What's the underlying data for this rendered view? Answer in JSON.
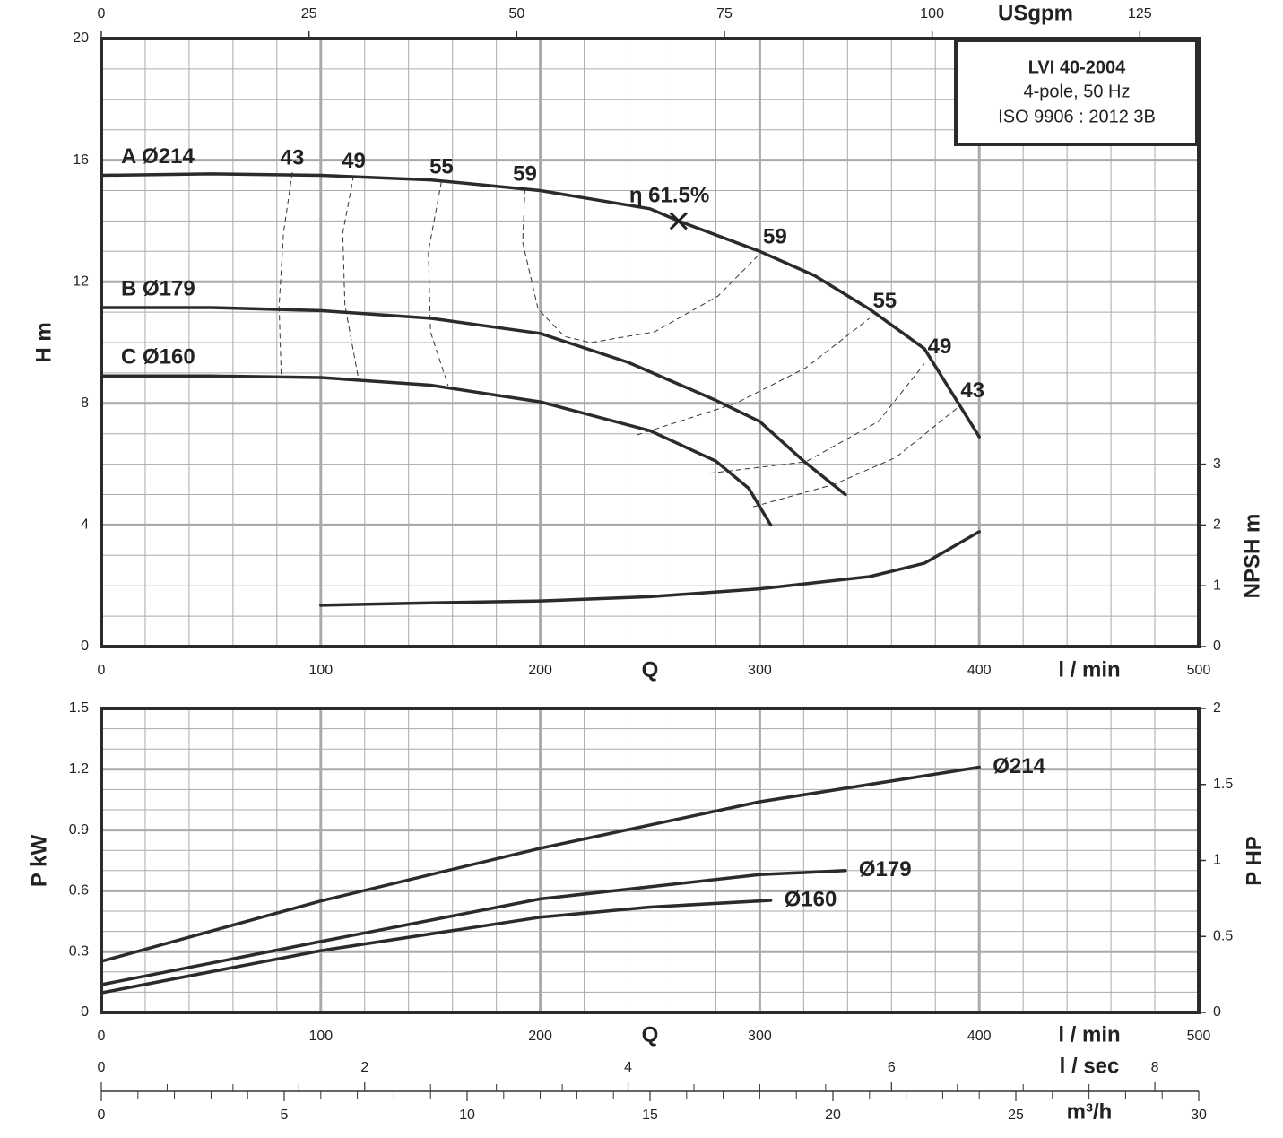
{
  "chart_data": [
    {
      "type": "line",
      "x_label": "l / min",
      "q_label": "Q",
      "y_label": "H m",
      "y2_label": "NPSH m",
      "x2_label": "USgpm",
      "xlim": [
        0,
        500
      ],
      "xticks": [
        0,
        100,
        200,
        300,
        400,
        500
      ],
      "xminorticks": [
        20,
        40,
        60,
        80,
        120,
        140,
        160,
        180,
        220,
        240,
        260,
        280,
        320,
        340,
        360,
        380,
        420,
        440,
        460,
        480
      ],
      "ylim": [
        0,
        20
      ],
      "yticks": [
        0,
        4,
        8,
        12,
        16,
        20
      ],
      "yminorticks": [
        1,
        2,
        3,
        5,
        6,
        7,
        9,
        10,
        11,
        13,
        14,
        15,
        17,
        18,
        19
      ],
      "y2lim": [
        0,
        10
      ],
      "y2ticks": [
        0,
        1,
        2,
        3
      ],
      "x2lim": [
        0,
        132.09
      ],
      "x2ticks": [
        0,
        25,
        50,
        75,
        100,
        125
      ],
      "grid": true,
      "series": [
        {
          "name": "A Ø214",
          "color": "#2b2b2b",
          "x": [
            0,
            50,
            100,
            150,
            200,
            250,
            263,
            300,
            325,
            350,
            375,
            400
          ],
          "values": [
            15.5,
            15.55,
            15.5,
            15.35,
            15.0,
            14.4,
            14.0,
            13.0,
            12.2,
            11.1,
            9.8,
            6.9
          ]
        },
        {
          "name": "B Ø179",
          "color": "#2b2b2b",
          "x": [
            0,
            50,
            100,
            150,
            200,
            240,
            280,
            300,
            320,
            339
          ],
          "values": [
            11.15,
            11.15,
            11.05,
            10.8,
            10.3,
            9.35,
            8.1,
            7.4,
            6.1,
            5.0
          ]
        },
        {
          "name": "C Ø160",
          "color": "#2b2b2b",
          "x": [
            0,
            50,
            100,
            150,
            200,
            250,
            280,
            295,
            305
          ],
          "values": [
            8.9,
            8.9,
            8.85,
            8.6,
            8.05,
            7.1,
            6.1,
            5.2,
            4.0
          ]
        }
      ],
      "npsh": {
        "color": "#2b2b2b",
        "axis": "y2",
        "x": [
          100,
          150,
          200,
          250,
          300,
          350,
          375,
          400
        ],
        "values": [
          0.68,
          0.72,
          0.75,
          0.82,
          0.95,
          1.15,
          1.37,
          1.89
        ]
      },
      "efficiency_curves": [
        {
          "name": "43",
          "x": [
            87,
            83,
            81,
            82,
            null,
            297,
            334,
            362,
            390
          ],
          "values": [
            15.6,
            13.6,
            11.2,
            8.9,
            null,
            4.6,
            5.34,
            6.22,
            7.85
          ]
        },
        {
          "name": "49",
          "x": [
            115,
            110,
            111,
            117,
            null,
            277,
            321,
            354,
            375
          ],
          "values": [
            15.5,
            13.6,
            11.24,
            8.88,
            null,
            5.7,
            6.08,
            7.4,
            9.3
          ]
        },
        {
          "name": "55",
          "x": [
            155,
            149,
            150,
            158,
            null,
            244,
            289,
            321,
            350
          ],
          "values": [
            15.3,
            13.0,
            10.35,
            8.58,
            null,
            6.96,
            8.0,
            9.17,
            10.8
          ]
        },
        {
          "name": "59",
          "x": [
            193,
            192,
            199,
            211,
            223,
            252,
            281,
            300
          ],
          "values": [
            15.07,
            13.3,
            11.1,
            10.2,
            10.0,
            10.35,
            11.53,
            12.92
          ]
        }
      ],
      "bep": {
        "x": 263,
        "value": 14.0,
        "label": "η 61.5%"
      },
      "info": {
        "title": "LVI 40-2004",
        "lines": [
          "4-pole, 50 Hz",
          "ISO 9906 : 2012 3B"
        ]
      }
    },
    {
      "type": "line",
      "x_label": "l / min",
      "q_label": "Q",
      "y_label": "P kW",
      "y2_label": "P HP",
      "xlim": [
        0,
        500
      ],
      "xticks": [
        0,
        100,
        200,
        300,
        400,
        500
      ],
      "xminorticks": [
        20,
        40,
        60,
        80,
        120,
        140,
        160,
        180,
        220,
        240,
        260,
        280,
        320,
        340,
        360,
        380,
        420,
        440,
        460,
        480
      ],
      "ylim": [
        0,
        1.5
      ],
      "yticks": [
        0,
        0.3,
        0.6,
        0.9,
        1.2,
        1.5
      ],
      "yminorticks": [
        0.1,
        0.2,
        0.4,
        0.5,
        0.7,
        0.8,
        1.0,
        1.1,
        1.3,
        1.4
      ],
      "y2lim": [
        0,
        2
      ],
      "y2ticks": [
        0,
        0.5,
        1,
        1.5,
        2
      ],
      "grid": true,
      "series": [
        {
          "name": "Ø214",
          "color": "#2b2b2b",
          "x": [
            0,
            100,
            200,
            300,
            400
          ],
          "values": [
            0.252,
            0.55,
            0.81,
            1.04,
            1.21
          ]
        },
        {
          "name": "Ø179",
          "color": "#2b2b2b",
          "x": [
            0,
            100,
            200,
            300,
            339
          ],
          "values": [
            0.137,
            0.35,
            0.56,
            0.68,
            0.7
          ]
        },
        {
          "name": "Ø160",
          "color": "#2b2b2b",
          "x": [
            0,
            100,
            200,
            250,
            305
          ],
          "values": [
            0.097,
            0.305,
            0.47,
            0.52,
            0.553
          ]
        }
      ],
      "x2_label": "l / sec",
      "x2lim": [
        0,
        8.333
      ],
      "x2ticks": [
        0,
        2,
        4,
        6,
        8
      ],
      "x2minorticks": [
        0.5,
        1,
        1.5,
        2.5,
        3,
        3.5,
        4.5,
        5,
        5.5,
        6.5,
        7,
        7.5
      ],
      "x3_label": "m³/h",
      "x3lim": [
        0,
        30
      ],
      "x3ticks": [
        0,
        5,
        10,
        15,
        20,
        25,
        30
      ],
      "x3minorticks": [
        1,
        2,
        3,
        4,
        6,
        7,
        8,
        9,
        11,
        12,
        13,
        14,
        16,
        17,
        18,
        19,
        21,
        22,
        23,
        24,
        26,
        27,
        28,
        29
      ]
    }
  ]
}
